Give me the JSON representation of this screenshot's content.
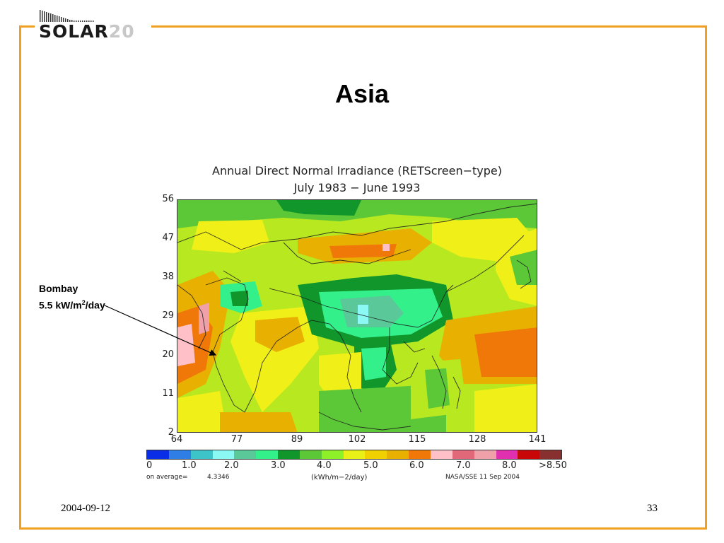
{
  "logo": {
    "word": "SOLAR",
    "number": "20"
  },
  "slide": {
    "title": "Asia",
    "date": "2004-09-12",
    "page_number": "33"
  },
  "annotation": {
    "line1": "Bombay",
    "line2_prefix": "5.5 kW/m",
    "line2_sup": "2",
    "line2_suffix": "/day"
  },
  "figure": {
    "title_line1": "Annual Direct Normal Irradiance (RETScreen−type)",
    "title_line2": "July 1983 − June 1993",
    "y_ticks": [
      "56",
      "47",
      "38",
      "29",
      "20",
      "11",
      "2"
    ],
    "x_ticks": [
      "64",
      "77",
      "89",
      "102",
      "115",
      "128",
      "141"
    ],
    "scale_colors": [
      "#0a2ee8",
      "#2f7ee6",
      "#3cc4c8",
      "#8cf8f4",
      "#5ac898",
      "#34f08a",
      "#10962a",
      "#5cc838",
      "#8ef028",
      "#e8f018",
      "#f0d000",
      "#e8b000",
      "#f07808",
      "#ffc0c8",
      "#e06878",
      "#f0a0a8",
      "#e030b0",
      "#c80808",
      "#883030"
    ],
    "scale_labels": [
      "0",
      "1.0",
      "2.0",
      "3.0",
      "4.0",
      "5.0",
      "6.0",
      "7.0",
      "8.0",
      ">8.50"
    ],
    "average_label": "on average=",
    "average_value": "4.3346",
    "unit_label": "(kWh/m−2/day)",
    "source_label": "NASA/SSE  11 Sep 2004"
  },
  "colors": {
    "frame": "#f0a020",
    "map_green": "#5cc838",
    "map_yellow_green": "#b8e820",
    "map_yellow": "#f0f018",
    "map_gold": "#e8b000",
    "map_orange": "#f07808",
    "map_teal": "#34f08a",
    "map_teal_light": "#5ac898",
    "map_dark_green": "#10962a",
    "map_pink": "#ffc0c8"
  }
}
